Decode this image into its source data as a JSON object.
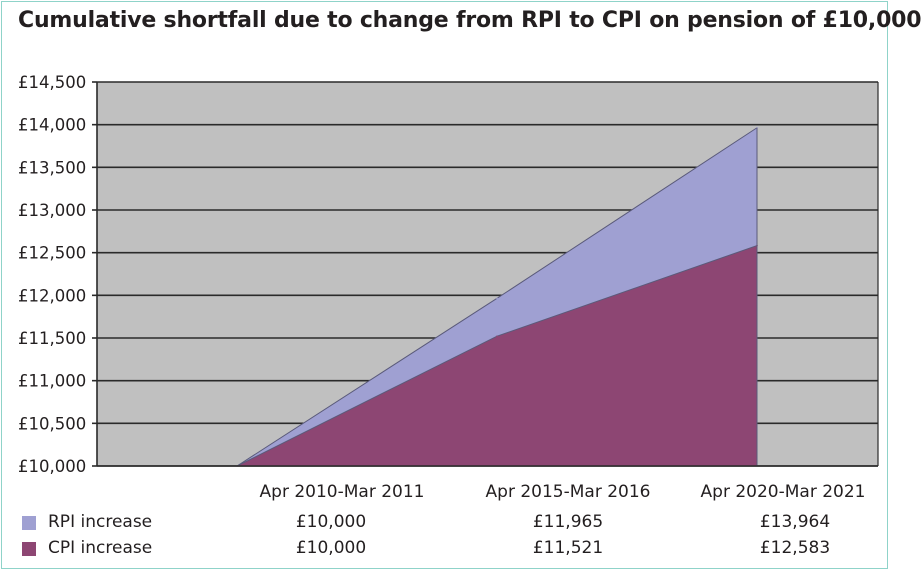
{
  "chart_data": {
    "type": "area",
    "title": "Cumulative shortfall due to change from RPI to CPI on pension of £10,000",
    "x": [
      "Apr 2010-Mar 2011",
      "Apr 2015-Mar 2016",
      "Apr 2020-Mar 2021"
    ],
    "series": [
      {
        "name": "RPI increase",
        "color": "#9fa0d2",
        "values": [
          10000,
          11965,
          13964
        ],
        "labels": [
          "£10,000",
          "£11,965",
          "£13,964"
        ]
      },
      {
        "name": "CPI increase",
        "color": "#8d4673",
        "values": [
          10000,
          11521,
          12583
        ],
        "labels": [
          "£10,000",
          "£11,521",
          "£12,583"
        ]
      }
    ],
    "ylim": [
      10000,
      14500
    ],
    "yticks": [
      10000,
      10500,
      11000,
      11500,
      12000,
      12500,
      13000,
      13500,
      14000,
      14500
    ],
    "ytick_labels": [
      "£10,000",
      "£10,500",
      "£11,000",
      "£11,500",
      "£12,000",
      "£12,500",
      "£13,000",
      "£13,500",
      "£14,000",
      "£14,500"
    ],
    "grid": true,
    "plot_background": "#c0c0c0",
    "data_table_below": true
  }
}
